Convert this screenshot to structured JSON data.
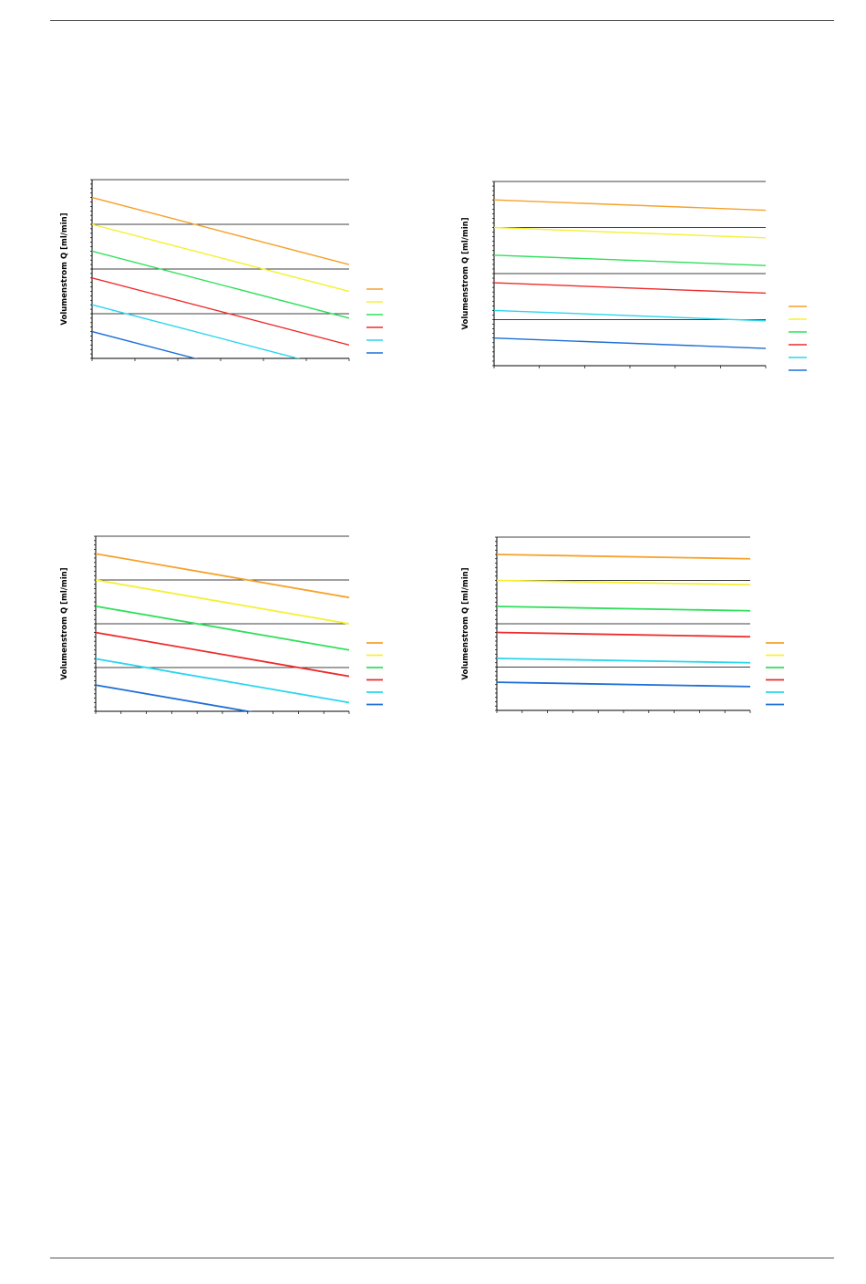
{
  "y_axis_label": "Volumenstrom Q [ml/min]",
  "chart_data": [
    {
      "type": "line",
      "ylabel": "Volumenstrom Q [ml/min]",
      "xlim": [
        0,
        6
      ],
      "ylim": [
        0,
        8
      ],
      "grid": "horizontal",
      "legend": "right",
      "series": [
        {
          "color": "#f7a12a",
          "x": [
            0,
            6
          ],
          "y": [
            7.2,
            4.2
          ]
        },
        {
          "color": "#f5f033",
          "x": [
            0,
            6
          ],
          "y": [
            6.0,
            3.0
          ]
        },
        {
          "color": "#2ee05a",
          "x": [
            0,
            6
          ],
          "y": [
            4.8,
            1.8
          ]
        },
        {
          "color": "#ee2a2a",
          "x": [
            0,
            6
          ],
          "y": [
            3.6,
            0.6
          ]
        },
        {
          "color": "#2ad6ee",
          "x": [
            0,
            6
          ],
          "y": [
            2.4,
            -0.6
          ]
        },
        {
          "color": "#1d6fd6",
          "x": [
            0,
            6
          ],
          "y": [
            1.2,
            -1.8
          ]
        }
      ]
    },
    {
      "type": "line",
      "ylabel": "Volumenstrom Q [ml/min]",
      "xlim": [
        0,
        6
      ],
      "ylim": [
        0,
        8
      ],
      "grid": "horizontal",
      "legend": "right",
      "series": [
        {
          "color": "#f7a12a",
          "x": [
            0,
            6
          ],
          "y": [
            7.2,
            6.75
          ]
        },
        {
          "color": "#f5f033",
          "x": [
            0,
            6
          ],
          "y": [
            6.0,
            5.55
          ]
        },
        {
          "color": "#2ee05a",
          "x": [
            0,
            6
          ],
          "y": [
            4.8,
            4.35
          ]
        },
        {
          "color": "#ee2a2a",
          "x": [
            0,
            6
          ],
          "y": [
            3.6,
            3.15
          ]
        },
        {
          "color": "#2ad6ee",
          "x": [
            0,
            6
          ],
          "y": [
            2.4,
            1.95
          ]
        },
        {
          "color": "#1d6fd6",
          "x": [
            0,
            6
          ],
          "y": [
            1.2,
            0.75
          ]
        }
      ]
    },
    {
      "type": "line",
      "ylabel": "Volumenstrom Q [ml/min]",
      "xlim": [
        0,
        10
      ],
      "ylim": [
        0,
        8
      ],
      "grid": "horizontal",
      "legend": "right",
      "series": [
        {
          "color": "#f7a12a",
          "x": [
            0,
            10
          ],
          "y": [
            7.2,
            5.2
          ]
        },
        {
          "color": "#f5f033",
          "x": [
            0,
            10
          ],
          "y": [
            6.0,
            4.0
          ]
        },
        {
          "color": "#2ee05a",
          "x": [
            0,
            10
          ],
          "y": [
            4.8,
            2.8
          ]
        },
        {
          "color": "#ee2a2a",
          "x": [
            0,
            10
          ],
          "y": [
            3.6,
            1.6
          ]
        },
        {
          "color": "#2ad6ee",
          "x": [
            0,
            10
          ],
          "y": [
            2.4,
            0.4
          ]
        },
        {
          "color": "#1d6fd6",
          "x": [
            0,
            10
          ],
          "y": [
            1.2,
            -0.8
          ]
        }
      ]
    },
    {
      "type": "line",
      "ylabel": "Volumenstrom Q [ml/min]",
      "xlim": [
        0,
        10
      ],
      "ylim": [
        0,
        8
      ],
      "grid": "horizontal",
      "legend": "right",
      "series": [
        {
          "color": "#f7a12a",
          "x": [
            0,
            10
          ],
          "y": [
            7.2,
            7.0
          ]
        },
        {
          "color": "#f5f033",
          "x": [
            0,
            10
          ],
          "y": [
            6.0,
            5.8
          ]
        },
        {
          "color": "#2ee05a",
          "x": [
            0,
            10
          ],
          "y": [
            4.8,
            4.6
          ]
        },
        {
          "color": "#ee2a2a",
          "x": [
            0,
            10
          ],
          "y": [
            3.6,
            3.4
          ]
        },
        {
          "color": "#2ad6ee",
          "x": [
            0,
            10
          ],
          "y": [
            2.4,
            2.2
          ]
        },
        {
          "color": "#1d6fd6",
          "x": [
            0,
            10
          ],
          "y": [
            1.3,
            1.1
          ]
        }
      ]
    }
  ]
}
